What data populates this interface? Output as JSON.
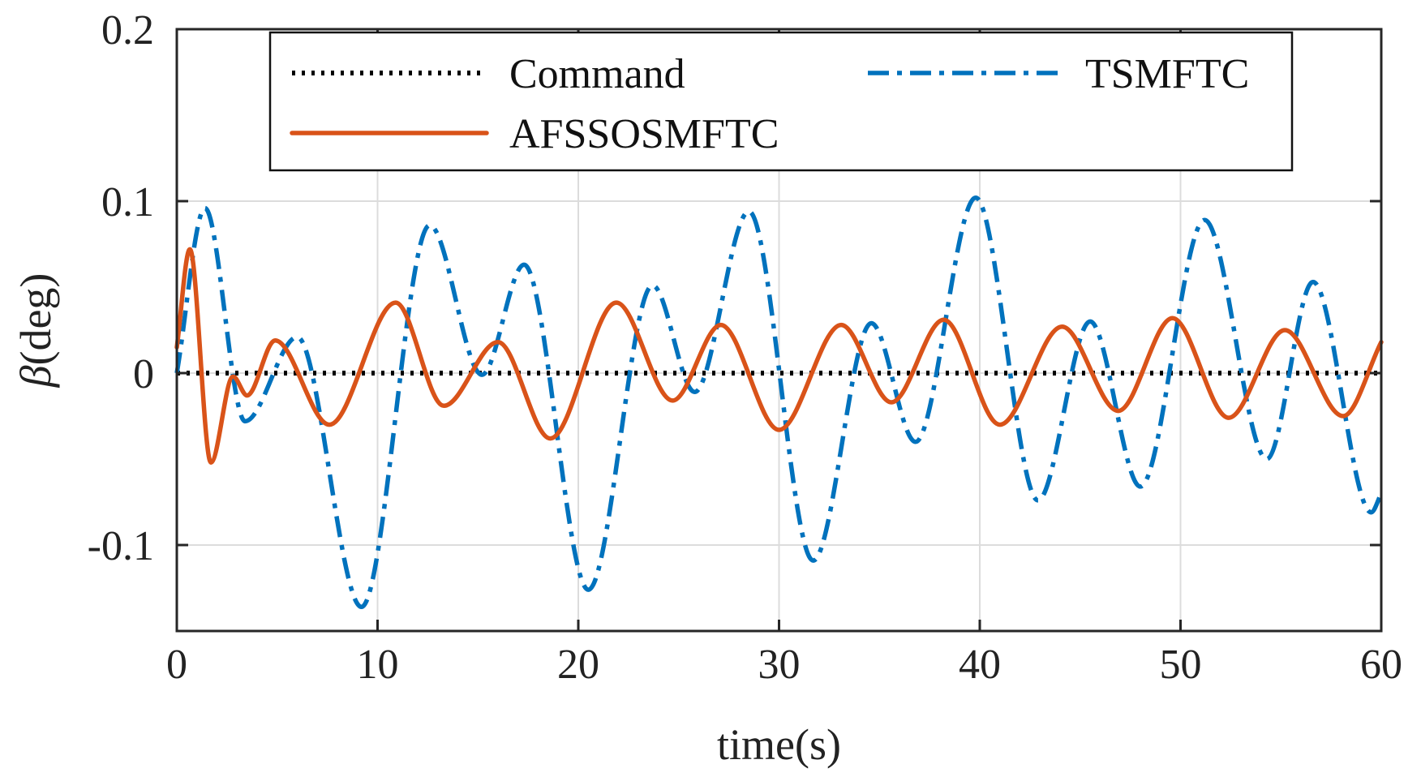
{
  "chart_data": {
    "type": "line",
    "title": "",
    "xlabel": "time(s)",
    "ylabel_symbol": "β",
    "ylabel_unit": "(deg)",
    "xlim": [
      0,
      60
    ],
    "ylim": [
      -0.15,
      0.2
    ],
    "grid": true,
    "legend_position": "top",
    "x_ticks": [
      {
        "value": 0,
        "label": "0"
      },
      {
        "value": 10,
        "label": "10"
      },
      {
        "value": 20,
        "label": "20"
      },
      {
        "value": 30,
        "label": "30"
      },
      {
        "value": 40,
        "label": "40"
      },
      {
        "value": 50,
        "label": "50"
      },
      {
        "value": 60,
        "label": "60"
      }
    ],
    "y_ticks": [
      {
        "value": -0.1,
        "label": "-0.1"
      },
      {
        "value": 0,
        "label": "0"
      },
      {
        "value": 0.1,
        "label": "0.1"
      },
      {
        "value": 0.2,
        "label": "0.2"
      }
    ],
    "series": [
      {
        "name": "Command",
        "color": "#000000",
        "style": "dotted",
        "x": [
          0,
          60
        ],
        "y": [
          0,
          0
        ]
      },
      {
        "name": "TSMFTC",
        "color": "#0072BD",
        "style": "dashdot",
        "x": [
          0,
          1.4,
          3.4,
          6.0,
          9.2,
          12.6,
          15.2,
          17.3,
          20.5,
          23.7,
          25.8,
          28.5,
          31.7,
          34.6,
          36.8,
          39.8,
          42.9,
          45.5,
          48.0,
          51.2,
          54.3,
          56.6,
          59.5,
          60
        ],
        "y": [
          0,
          0.096,
          -0.028,
          0.021,
          -0.136,
          0.086,
          -0.001,
          0.063,
          -0.126,
          0.051,
          -0.011,
          0.094,
          -0.109,
          0.029,
          -0.04,
          0.102,
          -0.074,
          0.03,
          -0.066,
          0.089,
          -0.05,
          0.053,
          -0.081,
          -0.07
        ]
      },
      {
        "name": "AFSSOSMFTC",
        "color": "#D95319",
        "style": "solid",
        "x": [
          0,
          0.65,
          1.7,
          2.8,
          3.5,
          4.9,
          7.6,
          10.9,
          13.3,
          16.0,
          18.6,
          21.9,
          24.7,
          27.1,
          30.0,
          33.1,
          35.6,
          38.2,
          41.0,
          44.1,
          46.9,
          49.6,
          52.4,
          55.2,
          58.1,
          60
        ],
        "y": [
          0.015,
          0.072,
          -0.052,
          -0.002,
          -0.013,
          0.019,
          -0.03,
          0.041,
          -0.019,
          0.018,
          -0.038,
          0.041,
          -0.016,
          0.028,
          -0.033,
          0.028,
          -0.017,
          0.031,
          -0.03,
          0.027,
          -0.022,
          0.032,
          -0.026,
          0.025,
          -0.025,
          0.018
        ]
      }
    ]
  }
}
